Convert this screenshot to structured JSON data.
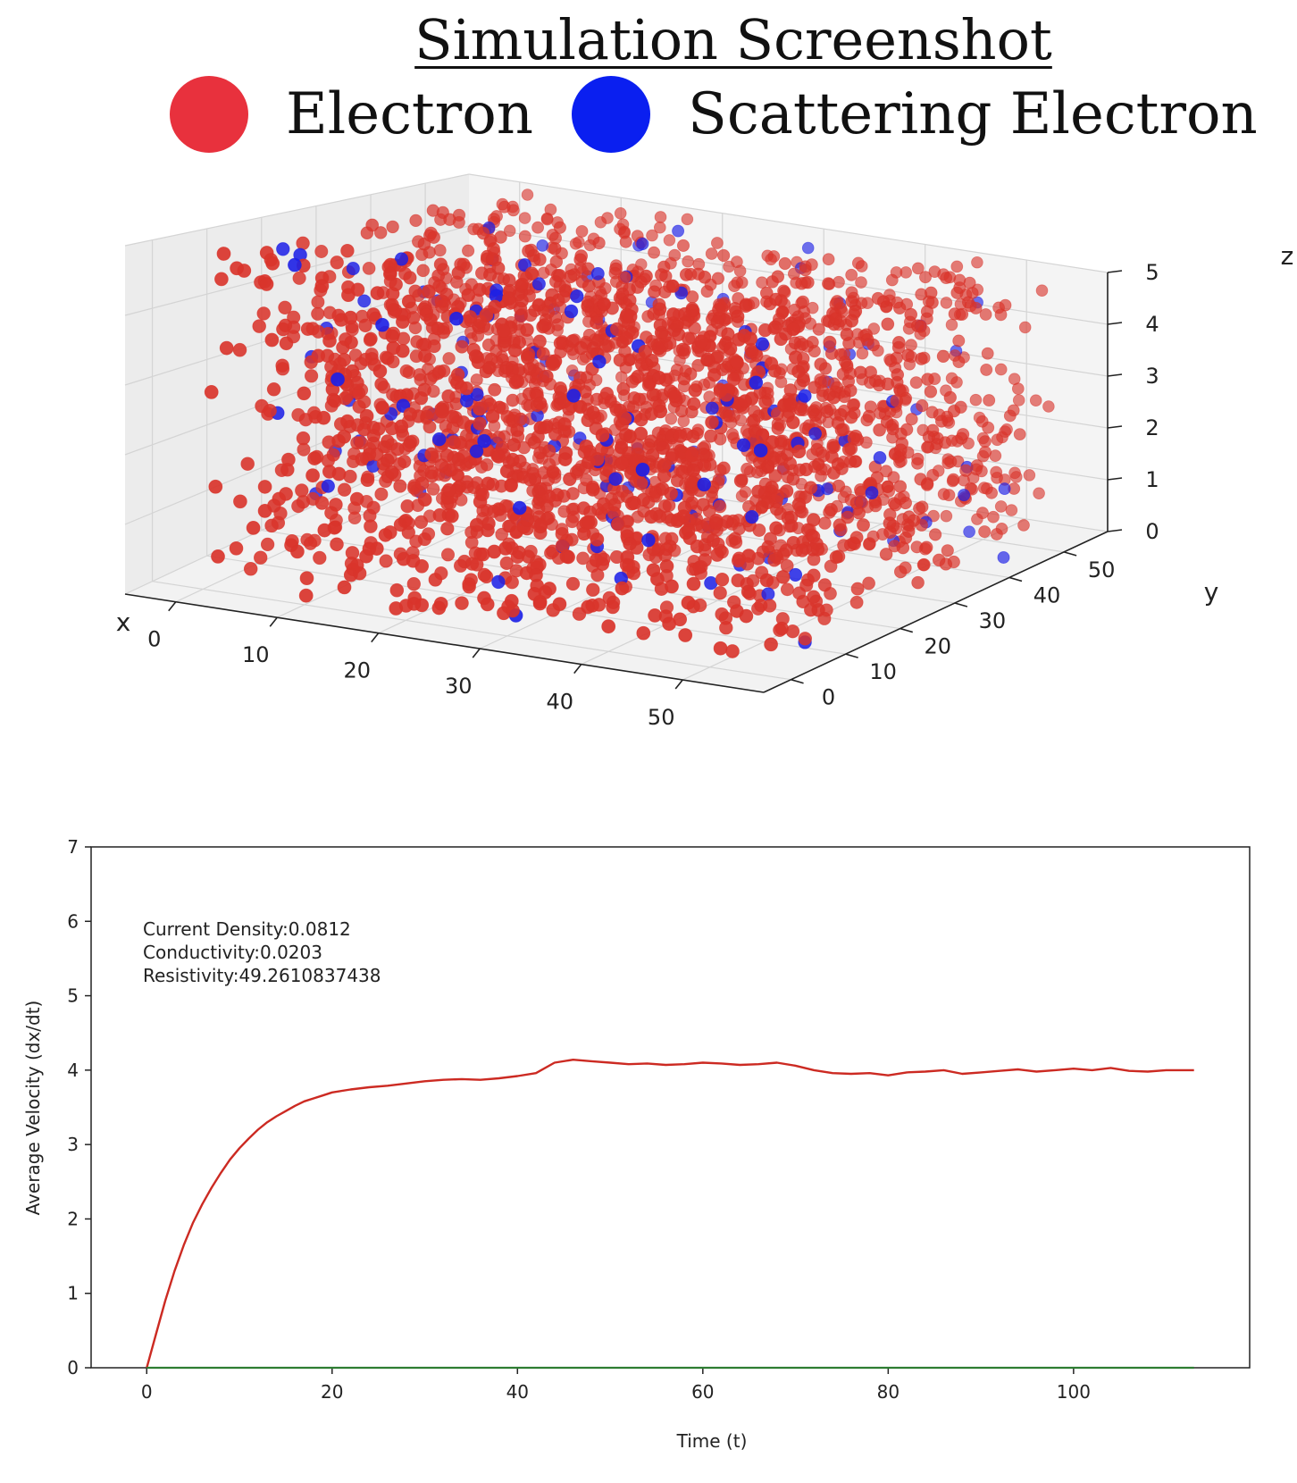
{
  "title": "Simulation Screenshot",
  "legend": [
    {
      "label": "Electron",
      "color": "#e8313d"
    },
    {
      "label": "Scattering Electron",
      "color": "#0a1ff0"
    }
  ],
  "chart_data": [
    {
      "type": "scatter",
      "projection": "3d",
      "xlabel": "x",
      "ylabel": "y",
      "zlabel": "z",
      "xticks": [
        0,
        10,
        20,
        30,
        40,
        50
      ],
      "yticks": [
        0,
        10,
        20,
        30,
        40,
        50
      ],
      "zticks": [
        0,
        1,
        2,
        3,
        4,
        5
      ],
      "xlim": [
        -5,
        58
      ],
      "ylim": [
        -5,
        58
      ],
      "zlim": [
        0,
        5
      ],
      "grid": true,
      "series": [
        {
          "name": "Electron",
          "color": "#d9342b",
          "distribution": "uniform",
          "x_range": [
            0,
            55
          ],
          "y_range": [
            0,
            55
          ],
          "z_range": [
            0,
            5
          ],
          "approx_count": 2400
        },
        {
          "name": "Scattering Electron",
          "color": "#1d20e6",
          "distribution": "uniform",
          "x_range": [
            0,
            55
          ],
          "y_range": [
            0,
            55
          ],
          "z_range": [
            0,
            5
          ],
          "approx_count": 160
        }
      ]
    },
    {
      "type": "line",
      "xlabel": "Time (t)",
      "ylabel": "Average Velocity (dx/dt)",
      "xlim": [
        -6,
        119
      ],
      "ylim": [
        0,
        7
      ],
      "xticks": [
        0,
        20,
        40,
        60,
        80,
        100
      ],
      "yticks": [
        0,
        1,
        2,
        3,
        4,
        5,
        6,
        7
      ],
      "grid": false,
      "annotations": [
        "Current Density:0.0812",
        "Conductivity:0.0203",
        "Resistivity:49.2610837438"
      ],
      "series": [
        {
          "color": "#cc2a22",
          "x": [
            0,
            1,
            2,
            3,
            4,
            5,
            6,
            7,
            8,
            9,
            10,
            11,
            12,
            13,
            14,
            15,
            16,
            17,
            18,
            19,
            20,
            22,
            24,
            26,
            28,
            30,
            32,
            34,
            36,
            38,
            40,
            42,
            44,
            46,
            48,
            50,
            52,
            54,
            56,
            58,
            60,
            62,
            64,
            66,
            68,
            70,
            72,
            74,
            76,
            78,
            80,
            82,
            84,
            86,
            88,
            90,
            92,
            94,
            96,
            98,
            100,
            102,
            104,
            106,
            108,
            110,
            113
          ],
          "y": [
            0,
            0.45,
            0.9,
            1.3,
            1.65,
            1.95,
            2.2,
            2.42,
            2.62,
            2.8,
            2.95,
            3.08,
            3.2,
            3.3,
            3.38,
            3.45,
            3.52,
            3.58,
            3.62,
            3.66,
            3.7,
            3.74,
            3.77,
            3.79,
            3.82,
            3.85,
            3.87,
            3.88,
            3.87,
            3.89,
            3.92,
            3.96,
            4.1,
            4.14,
            4.12,
            4.1,
            4.08,
            4.09,
            4.07,
            4.08,
            4.1,
            4.09,
            4.07,
            4.08,
            4.1,
            4.06,
            4.0,
            3.96,
            3.95,
            3.96,
            3.93,
            3.97,
            3.98,
            4.0,
            3.95,
            3.97,
            3.99,
            4.01,
            3.98,
            4.0,
            4.02,
            4.0,
            4.03,
            3.99,
            3.98,
            4.0,
            4.0
          ]
        },
        {
          "color": "#2e7d32",
          "x": [
            0,
            113
          ],
          "y": [
            0,
            0
          ]
        }
      ]
    }
  ]
}
